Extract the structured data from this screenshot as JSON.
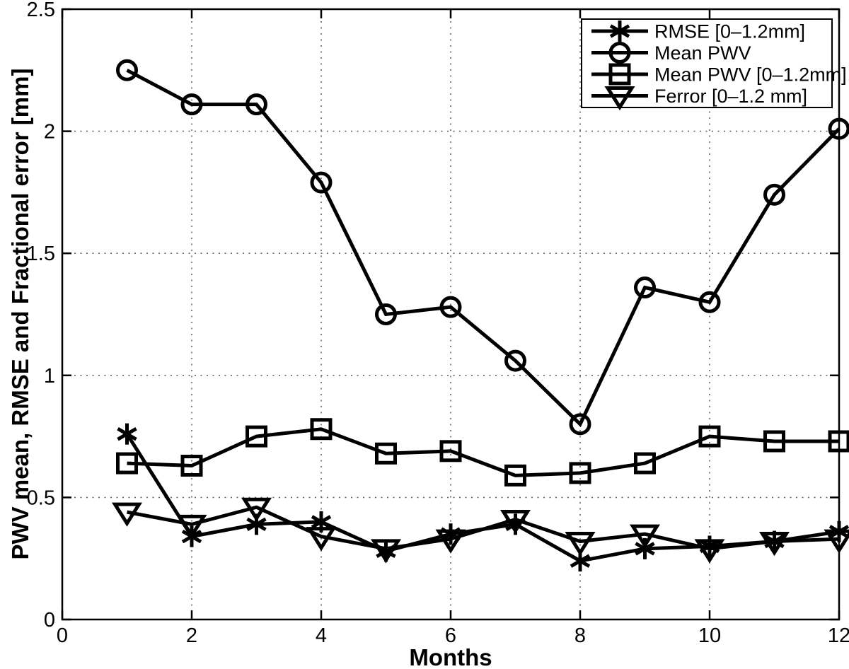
{
  "figure": {
    "background": "#ffffff",
    "line_color": "#000000",
    "grid_color": "#666666"
  },
  "chart_data": {
    "type": "line",
    "title": "",
    "xlabel": "Months",
    "ylabel": "PWV mean, RMSE and Fractional error [mm]",
    "xlim": [
      0,
      12
    ],
    "ylim": [
      0,
      2.5
    ],
    "x_ticks": [
      0,
      2,
      4,
      6,
      8,
      10,
      12
    ],
    "x_tick_labels": [
      "0",
      "2",
      "4",
      "6",
      "8",
      "10",
      "12"
    ],
    "y_ticks": [
      0,
      0.5,
      1,
      1.5,
      2,
      2.5
    ],
    "y_tick_labels": [
      "0",
      "0.5",
      "1",
      "1.5",
      "2",
      "2.5"
    ],
    "grid": true,
    "legend_position": "top-right",
    "x": [
      1,
      2,
      3,
      4,
      5,
      6,
      7,
      8,
      9,
      10,
      11,
      12
    ],
    "series": [
      {
        "name": "RMSE [0–1.2mm]",
        "marker": "asterisk",
        "color": "#000000",
        "values": [
          0.76,
          0.34,
          0.39,
          0.4,
          0.28,
          0.35,
          0.39,
          0.24,
          0.29,
          0.3,
          0.32,
          0.36
        ]
      },
      {
        "name": "Mean PWV",
        "marker": "circle",
        "color": "#000000",
        "values": [
          2.25,
          2.11,
          2.11,
          1.79,
          1.25,
          1.28,
          1.06,
          0.8,
          1.36,
          1.3,
          1.74,
          2.01
        ]
      },
      {
        "name": "Mean PWV [0–1.2mm]",
        "marker": "square",
        "color": "#000000",
        "values": [
          0.64,
          0.63,
          0.75,
          0.78,
          0.68,
          0.69,
          0.59,
          0.6,
          0.64,
          0.75,
          0.73,
          0.73
        ]
      },
      {
        "name": "Ferror [0–1.2 mm]",
        "marker": "triangle-down",
        "color": "#000000",
        "values": [
          0.44,
          0.39,
          0.46,
          0.34,
          0.29,
          0.33,
          0.41,
          0.32,
          0.35,
          0.29,
          0.32,
          0.33
        ]
      }
    ]
  }
}
